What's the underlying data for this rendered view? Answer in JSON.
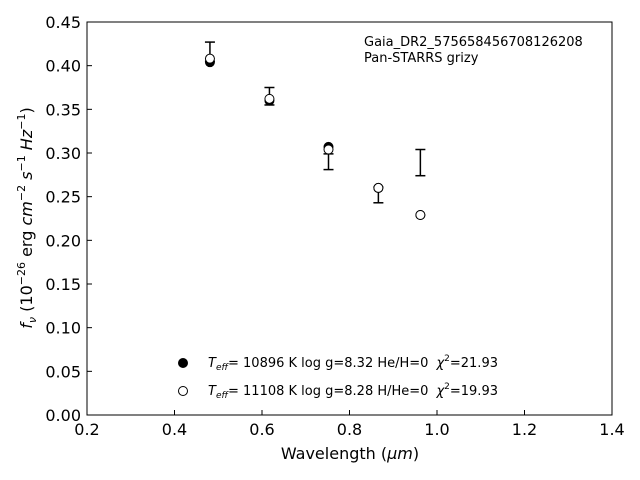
{
  "chart_data": {
    "type": "scatter",
    "xlabel_text": "Wavelength (",
    "xlabel_unit": "μm",
    "ylabel_prefix": "f",
    "ylabel_sub": "ν",
    "ylabel_open": " (10",
    "ylabel_exp": "−26",
    "ylabel_units": " erg ",
    "ylabel_cm": "cm",
    "ylabel_cm_exp": "−2",
    "ylabel_s": " s",
    "ylabel_s_exp": "−1",
    "ylabel_hz": " Hz",
    "ylabel_hz_exp": "−1",
    "ylabel_close": ")",
    "xlim": [
      0.2,
      1.4
    ],
    "ylim": [
      0.0,
      0.45
    ],
    "xticks": [
      0.2,
      0.4,
      0.6,
      0.8,
      1.0,
      1.2,
      1.4
    ],
    "xtick_labels": [
      "0.2",
      "0.4",
      "0.6",
      "0.8",
      "1.0",
      "1.2",
      "1.4"
    ],
    "yticks": [
      0.0,
      0.05,
      0.1,
      0.15,
      0.2,
      0.25,
      0.3,
      0.35,
      0.4,
      0.45
    ],
    "ytick_labels": [
      "0.00",
      "0.05",
      "0.10",
      "0.15",
      "0.20",
      "0.25",
      "0.30",
      "0.35",
      "0.40",
      "0.45"
    ],
    "annotation": [
      "Gaia_DR2_575658456708126208",
      "Pan-STARRS grizy"
    ],
    "observed": {
      "x": [
        0.481,
        0.617,
        0.752,
        0.866,
        0.962
      ],
      "y": [
        0.416,
        0.365,
        0.29,
        0.252,
        0.289
      ],
      "yerr": [
        0.011,
        0.01,
        0.009,
        0.009,
        0.015
      ]
    },
    "series": [
      {
        "filled": true,
        "x": [
          0.481,
          0.617,
          0.752,
          0.866,
          0.962
        ],
        "y": [
          0.404,
          0.36,
          0.307,
          0.26,
          0.229
        ],
        "legend_teff_label": "T",
        "legend_teff_sub": "eff",
        "legend_rest": "= 10896 K  log g=8.32  He/H=0",
        "legend_chi": "χ",
        "legend_chi_exp": "2",
        "legend_chi_val": "=21.93"
      },
      {
        "filled": false,
        "x": [
          0.481,
          0.617,
          0.752,
          0.866,
          0.962
        ],
        "y": [
          0.408,
          0.362,
          0.304,
          0.26,
          0.229
        ],
        "legend_teff_label": "T",
        "legend_teff_sub": "eff",
        "legend_rest": "= 11108 K  log g=8.28  H/He=0",
        "legend_chi": "χ",
        "legend_chi_exp": "2",
        "legend_chi_val": "=19.93"
      }
    ],
    "legend_position": "lower-center",
    "grid": false
  }
}
